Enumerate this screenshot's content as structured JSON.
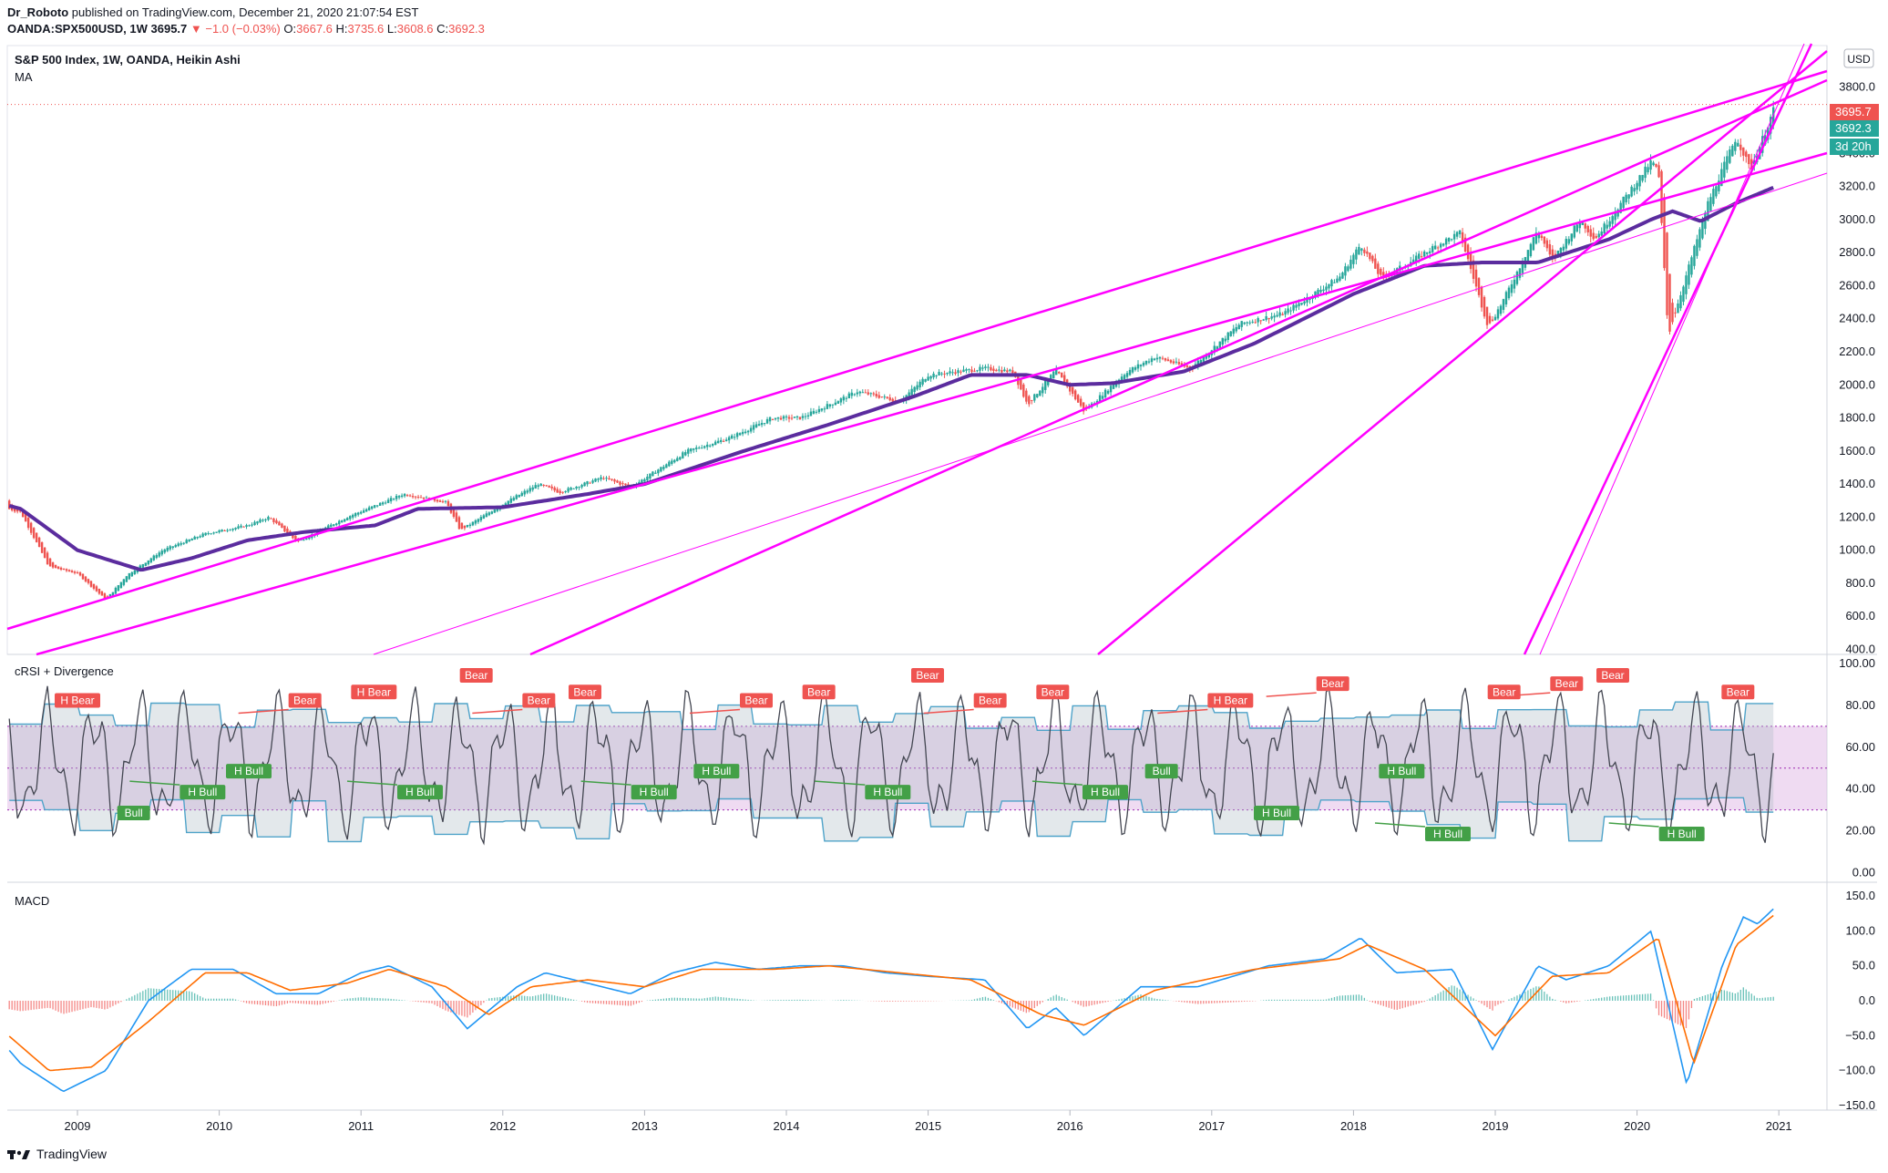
{
  "header": {
    "author": "Dr_Roboto",
    "published": "published on TradingView.com, December 21, 2020 21:07:54 EST",
    "symbol": "OANDA:SPX500USD, 1W",
    "last": "3695.7",
    "change": "−1.0 (−0.03%)",
    "o_label": "O:",
    "o": "3667.6",
    "h_label": "H:",
    "h": "3735.6",
    "l_label": "L:",
    "l": "3608.6",
    "c_label": "C:",
    "c": "3692.3"
  },
  "main_pane": {
    "title": "S&P 500 Index, 1W, OANDA, Heikin Ashi",
    "indicator": "MA",
    "currency": "USD",
    "last_price_tag": "3695.7",
    "close_tag": "3692.3",
    "countdown_tag": "3d 20h"
  },
  "crsi_pane": {
    "title": "cRSI + Divergence"
  },
  "macd_pane": {
    "title": "MACD"
  },
  "branding": "TradingView",
  "colors": {
    "up": "#26a69a",
    "down": "#ef5350",
    "ma": "#5b2c9e",
    "trendline": "#ff00ff",
    "crsi_line": "#434651",
    "band": "#4fa3c9",
    "macd": "#2196f3",
    "signal": "#ff6d00"
  },
  "chart_data": [
    {
      "type": "candlestick",
      "title": "S&P 500 Index, 1W, OANDA, Heikin Ashi",
      "x_ticks": [
        "2009",
        "2010",
        "2011",
        "2012",
        "2013",
        "2014",
        "2015",
        "2016",
        "2017",
        "2018",
        "2019",
        "2020",
        "2021"
      ],
      "y_ticks": [
        "400.0",
        "600.0",
        "800.0",
        "1000.0",
        "1200.0",
        "1400.0",
        "1600.0",
        "1800.0",
        "2000.0",
        "2200.0",
        "2400.0",
        "2600.0",
        "2800.0",
        "3000.0",
        "3200.0",
        "3400.0",
        "3800.0"
      ],
      "ylim": [
        380,
        4000
      ],
      "price_path": [
        [
          2008.3,
          1300
        ],
        [
          2008.6,
          1230
        ],
        [
          2008.8,
          900
        ],
        [
          2009.0,
          860
        ],
        [
          2009.2,
          700
        ],
        [
          2009.35,
          850
        ],
        [
          2009.6,
          1000
        ],
        [
          2009.9,
          1100
        ],
        [
          2010.2,
          1150
        ],
        [
          2010.35,
          1200
        ],
        [
          2010.55,
          1050
        ],
        [
          2010.9,
          1200
        ],
        [
          2011.3,
          1340
        ],
        [
          2011.6,
          1290
        ],
        [
          2011.7,
          1120
        ],
        [
          2012.0,
          1280
        ],
        [
          2012.25,
          1400
        ],
        [
          2012.4,
          1350
        ],
        [
          2012.7,
          1440
        ],
        [
          2012.9,
          1380
        ],
        [
          2013.3,
          1600
        ],
        [
          2013.6,
          1680
        ],
        [
          2013.9,
          1800
        ],
        [
          2014.1,
          1800
        ],
        [
          2014.5,
          1960
        ],
        [
          2014.8,
          1900
        ],
        [
          2015.0,
          2060
        ],
        [
          2015.4,
          2100
        ],
        [
          2015.6,
          2080
        ],
        [
          2015.7,
          1880
        ],
        [
          2015.9,
          2090
        ],
        [
          2016.1,
          1840
        ],
        [
          2016.4,
          2080
        ],
        [
          2016.6,
          2170
        ],
        [
          2016.85,
          2100
        ],
        [
          2017.2,
          2370
        ],
        [
          2017.5,
          2430
        ],
        [
          2017.9,
          2650
        ],
        [
          2018.05,
          2850
        ],
        [
          2018.2,
          2640
        ],
        [
          2018.6,
          2850
        ],
        [
          2018.75,
          2920
        ],
        [
          2018.95,
          2350
        ],
        [
          2019.05,
          2500
        ],
        [
          2019.3,
          2940
        ],
        [
          2019.4,
          2750
        ],
        [
          2019.6,
          3000
        ],
        [
          2019.7,
          2880
        ],
        [
          2020.1,
          3350
        ],
        [
          2020.15,
          3300
        ],
        [
          2020.22,
          2300
        ],
        [
          2020.5,
          3100
        ],
        [
          2020.7,
          3500
        ],
        [
          2020.8,
          3300
        ],
        [
          2020.98,
          3700
        ]
      ],
      "ma_path": [
        [
          2008.0,
          1390
        ],
        [
          2008.6,
          1250
        ],
        [
          2009.0,
          1000
        ],
        [
          2009.45,
          880
        ],
        [
          2009.8,
          950
        ],
        [
          2010.2,
          1060
        ],
        [
          2010.6,
          1110
        ],
        [
          2011.1,
          1150
        ],
        [
          2011.4,
          1250
        ],
        [
          2012.0,
          1260
        ],
        [
          2012.6,
          1340
        ],
        [
          2013.0,
          1400
        ],
        [
          2013.7,
          1600
        ],
        [
          2014.3,
          1760
        ],
        [
          2014.9,
          1930
        ],
        [
          2015.3,
          2060
        ],
        [
          2015.7,
          2060
        ],
        [
          2016.0,
          2000
        ],
        [
          2016.3,
          2010
        ],
        [
          2016.8,
          2080
        ],
        [
          2017.3,
          2250
        ],
        [
          2018.0,
          2550
        ],
        [
          2018.5,
          2720
        ],
        [
          2018.9,
          2740
        ],
        [
          2019.3,
          2740
        ],
        [
          2019.8,
          2880
        ],
        [
          2020.1,
          3000
        ],
        [
          2020.25,
          3050
        ],
        [
          2020.45,
          2990
        ],
        [
          2020.7,
          3100
        ],
        [
          2020.98,
          3200
        ]
      ]
    },
    {
      "type": "line",
      "title": "cRSI + Divergence",
      "y_ticks": [
        "100.00",
        "80.00",
        "60.00",
        "40.00",
        "20.00",
        "0.00"
      ],
      "ylim": [
        -2,
        102
      ],
      "band": [
        30,
        70
      ],
      "labels": [
        "H Bear",
        "Bull",
        "H Bull",
        "H Bull",
        "Bear",
        "H Bear",
        "H Bull",
        "Bear",
        "Bear",
        "Bear",
        "H Bull",
        "H Bull",
        "Bear",
        "Bear",
        "H Bull",
        "Bear",
        "Bear",
        "Bear",
        "H Bull",
        "Bull",
        "H Bear",
        "H Bull",
        "Bear",
        "H Bull",
        "H Bull",
        "Bear",
        "Bear",
        "Bear",
        "H Bull",
        "Bear"
      ]
    },
    {
      "type": "line",
      "title": "MACD",
      "y_ticks": [
        "150.0",
        "100.0",
        "50.0",
        "0.0",
        "−50.0",
        "−100.0",
        "−150.0"
      ],
      "ylim": [
        -160,
        160
      ],
      "series": [
        {
          "name": "",
          "values": [
            [
              2008.0,
              0
            ],
            [
              2008.3,
              -20
            ],
            [
              2008.6,
              -90
            ],
            [
              2008.9,
              -130
            ],
            [
              2009.2,
              -100
            ],
            [
              2009.5,
              0
            ],
            [
              2009.8,
              45
            ],
            [
              2010.1,
              45
            ],
            [
              2010.4,
              10
            ],
            [
              2010.7,
              10
            ],
            [
              2011.0,
              40
            ],
            [
              2011.2,
              50
            ],
            [
              2011.5,
              20
            ],
            [
              2011.75,
              -40
            ],
            [
              2012.1,
              20
            ],
            [
              2012.3,
              40
            ],
            [
              2012.6,
              25
            ],
            [
              2012.9,
              10
            ],
            [
              2013.2,
              40
            ],
            [
              2013.5,
              55
            ],
            [
              2013.8,
              45
            ],
            [
              2014.1,
              50
            ],
            [
              2014.4,
              50
            ],
            [
              2014.7,
              40
            ],
            [
              2015.0,
              35
            ],
            [
              2015.4,
              30
            ],
            [
              2015.7,
              -40
            ],
            [
              2015.9,
              -10
            ],
            [
              2016.1,
              -50
            ],
            [
              2016.5,
              20
            ],
            [
              2016.9,
              20
            ],
            [
              2017.4,
              50
            ],
            [
              2017.8,
              60
            ],
            [
              2018.05,
              90
            ],
            [
              2018.3,
              40
            ],
            [
              2018.7,
              45
            ],
            [
              2018.98,
              -70
            ],
            [
              2019.3,
              50
            ],
            [
              2019.5,
              30
            ],
            [
              2019.8,
              50
            ],
            [
              2020.1,
              100
            ],
            [
              2020.35,
              -120
            ],
            [
              2020.6,
              50
            ],
            [
              2020.75,
              120
            ],
            [
              2020.85,
              110
            ],
            [
              2020.98,
              135
            ]
          ]
        },
        {
          "name": "",
          "values": [
            [
              2008.0,
              -10
            ],
            [
              2008.4,
              -30
            ],
            [
              2008.8,
              -100
            ],
            [
              2009.1,
              -95
            ],
            [
              2009.5,
              -30
            ],
            [
              2009.9,
              40
            ],
            [
              2010.2,
              40
            ],
            [
              2010.5,
              15
            ],
            [
              2010.9,
              25
            ],
            [
              2011.2,
              45
            ],
            [
              2011.6,
              20
            ],
            [
              2011.9,
              -20
            ],
            [
              2012.2,
              20
            ],
            [
              2012.6,
              30
            ],
            [
              2013.0,
              20
            ],
            [
              2013.4,
              45
            ],
            [
              2013.9,
              45
            ],
            [
              2014.3,
              50
            ],
            [
              2014.8,
              40
            ],
            [
              2015.3,
              30
            ],
            [
              2015.8,
              -20
            ],
            [
              2016.1,
              -35
            ],
            [
              2016.6,
              15
            ],
            [
              2017.3,
              45
            ],
            [
              2017.9,
              60
            ],
            [
              2018.1,
              80
            ],
            [
              2018.5,
              45
            ],
            [
              2019.0,
              -50
            ],
            [
              2019.4,
              35
            ],
            [
              2019.8,
              40
            ],
            [
              2020.15,
              90
            ],
            [
              2020.4,
              -90
            ],
            [
              2020.7,
              80
            ],
            [
              2020.98,
              125
            ]
          ]
        }
      ]
    }
  ]
}
